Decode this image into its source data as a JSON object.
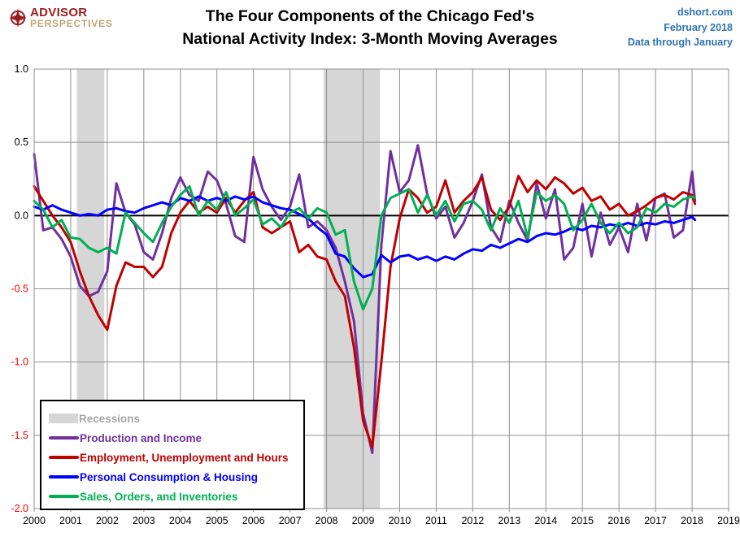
{
  "header": {
    "brand_line1": "ADVISOR",
    "brand_line2": "PERSPECTIVES",
    "brand_color_primary": "#9B1B1F",
    "brand_color_secondary": "#BFA575",
    "title_line1": "The Four Components of the Chicago Fed's",
    "title_line2": "National Activity Index: 3-Month Moving Averages",
    "source": "dshort.com",
    "date_label": "February 2018",
    "note": "Data through January",
    "accent_color": "#2E74B5"
  },
  "chart_data": {
    "type": "line",
    "title": "The Four Components of the Chicago Fed's National Activity Index: 3-Month Moving Averages",
    "xlabel": "",
    "ylabel": "",
    "x_min": 2000,
    "x_max": 2019,
    "x_tick_step": 1,
    "y_min": -2.0,
    "y_max": 1.0,
    "y_tick_step": 0.5,
    "grid": true,
    "grid_color": "#909090",
    "zero_line_color": "#000000",
    "tick_label_positive_color": "#000000",
    "tick_label_negative_color": "#FF0000",
    "legend_position": "bottom-left",
    "recessions_label": "Recessions",
    "recession_band_color": "#D6D6D6",
    "recession_label_color": "#A6A6A6",
    "recessions": [
      {
        "start": 2001.17,
        "end": 2001.92
      },
      {
        "start": 2007.92,
        "end": 2009.46
      }
    ],
    "x": [
      2000,
      2000.25,
      2000.5,
      2000.75,
      2001,
      2001.25,
      2001.5,
      2001.75,
      2002,
      2002.25,
      2002.5,
      2002.75,
      2003,
      2003.25,
      2003.5,
      2003.75,
      2004,
      2004.25,
      2004.5,
      2004.75,
      2005,
      2005.25,
      2005.5,
      2005.75,
      2006,
      2006.25,
      2006.5,
      2006.75,
      2007,
      2007.25,
      2007.5,
      2007.75,
      2008,
      2008.25,
      2008.5,
      2008.75,
      2009,
      2009.25,
      2009.5,
      2009.75,
      2010,
      2010.25,
      2010.5,
      2010.75,
      2011,
      2011.25,
      2011.5,
      2011.75,
      2012,
      2012.25,
      2012.5,
      2012.75,
      2013,
      2013.25,
      2013.5,
      2013.75,
      2014,
      2014.25,
      2014.5,
      2014.75,
      2015,
      2015.25,
      2015.5,
      2015.75,
      2016,
      2016.25,
      2016.5,
      2016.75,
      2017,
      2017.25,
      2017.5,
      2017.75,
      2018,
      2018.08
    ],
    "series": [
      {
        "name": "Production and Income",
        "color": "#7030A0",
        "values": [
          0.42,
          -0.1,
          -0.08,
          -0.16,
          -0.28,
          -0.48,
          -0.55,
          -0.52,
          -0.38,
          0.22,
          0.02,
          -0.06,
          -0.25,
          -0.3,
          -0.12,
          0.12,
          0.26,
          0.14,
          0.1,
          0.3,
          0.24,
          0.08,
          -0.14,
          -0.18,
          0.4,
          0.18,
          0.06,
          -0.03,
          0.06,
          0.28,
          -0.08,
          -0.04,
          -0.1,
          -0.22,
          -0.45,
          -0.72,
          -1.35,
          -1.62,
          -0.2,
          0.44,
          0.16,
          0.24,
          0.48,
          0.15,
          -0.02,
          0.06,
          -0.15,
          -0.05,
          0.1,
          0.28,
          -0.08,
          -0.18,
          0.1,
          -0.05,
          -0.17,
          0.22,
          -0.02,
          0.18,
          -0.3,
          -0.22,
          0.08,
          -0.28,
          0.02,
          -0.2,
          -0.08,
          -0.25,
          0.08,
          -0.17,
          0.12,
          0.15,
          -0.15,
          -0.1,
          0.3,
          0.1
        ]
      },
      {
        "name": "Employment, Unemployment and Hours",
        "color": "#C00000",
        "values": [
          0.2,
          0.1,
          0.0,
          -0.08,
          -0.18,
          -0.38,
          -0.55,
          -0.68,
          -0.78,
          -0.48,
          -0.32,
          -0.35,
          -0.35,
          -0.42,
          -0.35,
          -0.12,
          0.02,
          0.1,
          0.02,
          0.06,
          0.02,
          0.12,
          0.02,
          0.1,
          0.16,
          -0.08,
          -0.12,
          -0.08,
          -0.04,
          -0.25,
          -0.2,
          -0.28,
          -0.3,
          -0.45,
          -0.55,
          -0.9,
          -1.4,
          -1.58,
          -1.0,
          -0.35,
          -0.02,
          0.18,
          0.12,
          0.02,
          0.06,
          0.24,
          0.02,
          0.1,
          0.16,
          0.26,
          0.04,
          -0.03,
          0.06,
          0.27,
          0.16,
          0.24,
          0.18,
          0.26,
          0.22,
          0.15,
          0.19,
          0.1,
          0.13,
          0.04,
          0.08,
          0.0,
          0.03,
          0.07,
          0.12,
          0.14,
          0.11,
          0.16,
          0.14,
          0.08
        ]
      },
      {
        "name": "Personal Consumption & Housing",
        "color": "#0000FF",
        "values": [
          0.06,
          0.04,
          0.07,
          0.04,
          0.02,
          0.0,
          0.01,
          0.0,
          0.04,
          0.05,
          0.03,
          0.02,
          0.05,
          0.07,
          0.09,
          0.07,
          0.12,
          0.1,
          0.13,
          0.1,
          0.12,
          0.1,
          0.13,
          0.11,
          0.13,
          0.09,
          0.07,
          0.05,
          0.04,
          0.01,
          -0.02,
          -0.08,
          -0.13,
          -0.26,
          -0.28,
          -0.36,
          -0.42,
          -0.4,
          -0.27,
          -0.32,
          -0.28,
          -0.27,
          -0.3,
          -0.28,
          -0.31,
          -0.28,
          -0.3,
          -0.26,
          -0.23,
          -0.24,
          -0.2,
          -0.22,
          -0.19,
          -0.16,
          -0.18,
          -0.14,
          -0.12,
          -0.13,
          -0.11,
          -0.08,
          -0.1,
          -0.07,
          -0.08,
          -0.06,
          -0.07,
          -0.05,
          -0.07,
          -0.05,
          -0.06,
          -0.04,
          -0.05,
          -0.03,
          -0.01,
          -0.03
        ]
      },
      {
        "name": "Sales, Orders, and Inventories",
        "color": "#00B050",
        "values": [
          0.1,
          0.04,
          -0.08,
          -0.03,
          -0.15,
          -0.16,
          -0.22,
          -0.25,
          -0.22,
          -0.26,
          0.02,
          -0.05,
          -0.12,
          -0.18,
          -0.05,
          0.06,
          0.14,
          0.2,
          0.0,
          0.1,
          0.04,
          0.16,
          0.0,
          0.05,
          0.11,
          -0.06,
          -0.02,
          -0.08,
          0.02,
          0.05,
          -0.02,
          0.05,
          0.02,
          -0.13,
          -0.1,
          -0.45,
          -0.64,
          -0.5,
          0.0,
          0.12,
          0.15,
          0.18,
          0.02,
          0.14,
          0.0,
          0.1,
          -0.04,
          0.08,
          0.1,
          0.04,
          -0.1,
          0.05,
          -0.05,
          0.1,
          -0.15,
          0.16,
          0.1,
          0.14,
          0.08,
          -0.1,
          -0.03,
          0.08,
          -0.05,
          -0.12,
          -0.05,
          -0.12,
          -0.08,
          0.05,
          0.02,
          0.08,
          0.06,
          0.11,
          0.13,
          0.12
        ]
      }
    ]
  }
}
